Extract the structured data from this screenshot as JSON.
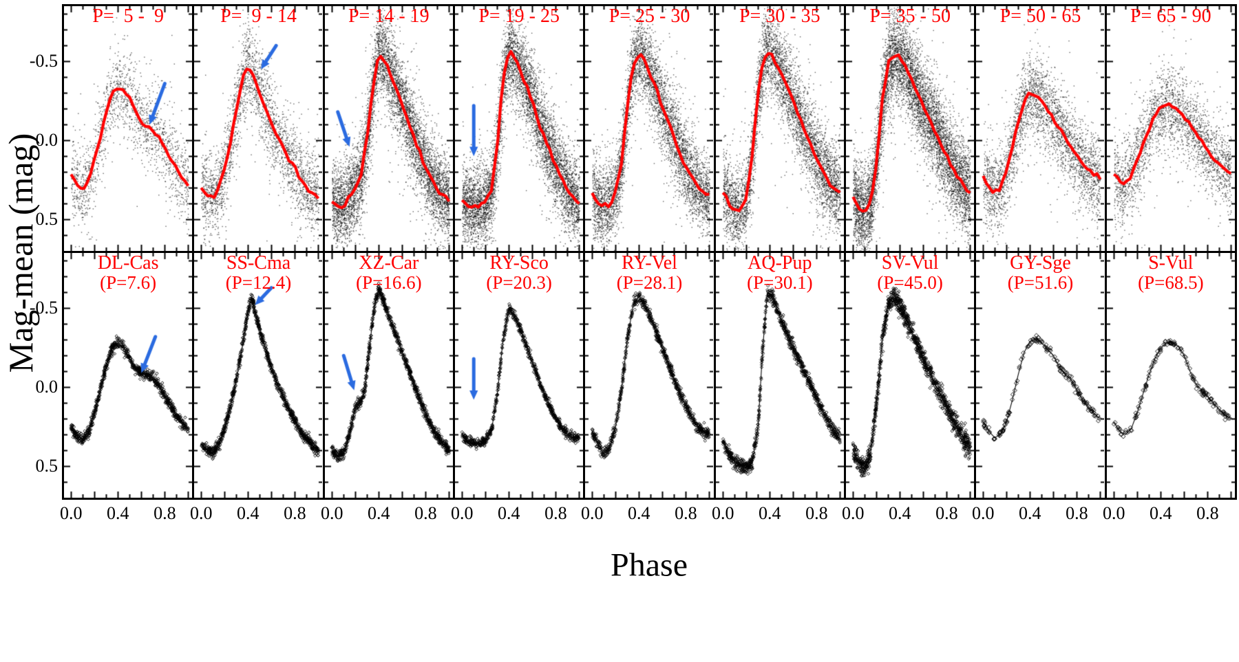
{
  "figure": {
    "ylabel": "Mag-mean (mag)",
    "xlabel": "Phase",
    "colors": {
      "mean_curve": "#ff0000",
      "panel_title": "#ff0000",
      "arrow": "#2b6be0",
      "points": "#000000",
      "axis": "#000000",
      "background": "#ffffff"
    }
  },
  "chart_data": {
    "type": "scatter",
    "x_label": "Phase",
    "y_label": "Mag-mean (mag)",
    "y_axis_inverted": true,
    "x_range": [
      0,
      1
    ],
    "y_plot_range_top_to_bottom": [
      -0.85,
      0.7
    ],
    "x_ticks": [
      0.0,
      0.4,
      0.8
    ],
    "x_tick_labels": [
      "0.0",
      "0.4",
      "0.8"
    ],
    "y_ticks": [
      -0.5,
      0.0,
      0.5
    ],
    "y_tick_labels": [
      "-0.5",
      "0.0",
      "0.5"
    ],
    "top_row_description": "Composite phase-folded light curves of Cepheids binned by period, black scatter points with red mean curve, blue arrows mark bump feature",
    "bottom_row_description": "Template light curves of individual Cepheids, black diamond points, blue arrows mark bump feature",
    "top_row": [
      {
        "label": "P=  5 -  9",
        "period_min": 5,
        "period_max": 9,
        "n_points": 1600,
        "scatter_sigma": 0.12,
        "mean_curve": {
          "mag": [
            0.22,
            0.28,
            0.3,
            0.25,
            0.12,
            -0.02,
            -0.18,
            -0.3,
            -0.34,
            -0.32,
            -0.26,
            -0.18,
            -0.12,
            -0.08,
            -0.06,
            -0.02,
            0.05,
            0.12,
            0.18,
            0.24,
            0.28
          ]
        },
        "arrow": {
          "from": [
            0.8,
            -0.36
          ],
          "to": [
            0.67,
            -0.1
          ]
        }
      },
      {
        "label": "P=  9 - 14",
        "period_min": 9,
        "period_max": 14,
        "n_points": 2600,
        "scatter_sigma": 0.12,
        "mean_curve": {
          "mag": [
            0.3,
            0.35,
            0.37,
            0.3,
            0.18,
            0.02,
            -0.18,
            -0.38,
            -0.46,
            -0.4,
            -0.3,
            -0.2,
            -0.1,
            -0.02,
            0.05,
            0.12,
            0.18,
            0.24,
            0.3,
            0.34,
            0.36
          ]
        },
        "arrow": {
          "from": [
            0.64,
            -0.6
          ],
          "to": [
            0.51,
            -0.45
          ]
        }
      },
      {
        "label": "P= 14 - 19",
        "period_min": 14,
        "period_max": 19,
        "n_points": 6000,
        "scatter_sigma": 0.12,
        "mean_curve": {
          "mag": [
            0.38,
            0.42,
            0.41,
            0.36,
            0.3,
            0.22,
            -0.02,
            -0.35,
            -0.55,
            -0.51,
            -0.42,
            -0.32,
            -0.22,
            -0.12,
            -0.02,
            0.08,
            0.17,
            0.25,
            0.31,
            0.35,
            0.38
          ]
        },
        "arrow": {
          "from": [
            0.05,
            -0.18
          ],
          "to": [
            0.15,
            0.04
          ]
        }
      },
      {
        "label": "P= 19 - 25",
        "period_min": 19,
        "period_max": 25,
        "n_points": 6000,
        "scatter_sigma": 0.12,
        "mean_curve": {
          "mag": [
            0.38,
            0.41,
            0.42,
            0.42,
            0.4,
            0.32,
            0.05,
            -0.4,
            -0.57,
            -0.52,
            -0.44,
            -0.34,
            -0.24,
            -0.13,
            -0.03,
            0.07,
            0.16,
            0.24,
            0.31,
            0.36,
            0.39
          ]
        },
        "arrow": {
          "from": [
            0.1,
            -0.22
          ],
          "to": [
            0.1,
            0.1
          ]
        }
      },
      {
        "label": "P= 25 - 30",
        "period_min": 25,
        "period_max": 30,
        "n_points": 5000,
        "scatter_sigma": 0.12,
        "mean_curve": {
          "mag": [
            0.34,
            0.4,
            0.43,
            0.41,
            0.33,
            0.15,
            -0.2,
            -0.48,
            -0.55,
            -0.5,
            -0.42,
            -0.32,
            -0.22,
            -0.12,
            -0.02,
            0.08,
            0.16,
            0.23,
            0.29,
            0.33,
            0.35
          ]
        }
      },
      {
        "label": "P= 30 - 35",
        "period_min": 30,
        "period_max": 35,
        "n_points": 5000,
        "scatter_sigma": 0.12,
        "mean_curve": {
          "mag": [
            0.32,
            0.4,
            0.44,
            0.44,
            0.36,
            0.1,
            -0.3,
            -0.53,
            -0.56,
            -0.5,
            -0.42,
            -0.33,
            -0.24,
            -0.15,
            -0.06,
            0.03,
            0.11,
            0.19,
            0.25,
            0.3,
            0.33
          ]
        }
      },
      {
        "label": "P= 35 - 50",
        "period_min": 35,
        "period_max": 50,
        "n_points": 7000,
        "scatter_sigma": 0.13,
        "mean_curve": {
          "mag": [
            0.36,
            0.43,
            0.46,
            0.4,
            0.15,
            -0.25,
            -0.48,
            -0.55,
            -0.52,
            -0.46,
            -0.38,
            -0.3,
            -0.22,
            -0.14,
            -0.06,
            0.02,
            0.1,
            0.18,
            0.24,
            0.3,
            0.34
          ]
        }
      },
      {
        "label": "P= 50 - 65",
        "period_min": 50,
        "period_max": 65,
        "n_points": 3000,
        "scatter_sigma": 0.12,
        "mean_curve": {
          "mag": [
            0.24,
            0.3,
            0.33,
            0.3,
            0.2,
            0.05,
            -0.12,
            -0.25,
            -0.3,
            -0.29,
            -0.25,
            -0.2,
            -0.14,
            -0.08,
            -0.02,
            0.04,
            0.1,
            0.15,
            0.19,
            0.22,
            0.24
          ]
        }
      },
      {
        "label": "P= 65 - 90",
        "period_min": 65,
        "period_max": 90,
        "n_points": 2500,
        "scatter_sigma": 0.12,
        "mean_curve": {
          "mag": [
            0.22,
            0.26,
            0.27,
            0.22,
            0.12,
            0.02,
            -0.08,
            -0.16,
            -0.21,
            -0.23,
            -0.22,
            -0.19,
            -0.15,
            -0.1,
            -0.05,
            0.0,
            0.06,
            0.11,
            0.15,
            0.18,
            0.2
          ]
        }
      }
    ],
    "bottom_row": [
      {
        "name": "DL-Cas",
        "period_label": "(P=7.6)",
        "period": 7.6,
        "n_points": 800,
        "jitter": 0.018,
        "marker_size": 2.2,
        "curve": {
          "mag": [
            0.26,
            0.31,
            0.33,
            0.28,
            0.16,
            0.02,
            -0.13,
            -0.25,
            -0.28,
            -0.25,
            -0.18,
            -0.12,
            -0.09,
            -0.08,
            -0.06,
            -0.01,
            0.06,
            0.12,
            0.18,
            0.23,
            0.26
          ]
        },
        "arrow": {
          "from": [
            0.72,
            -0.32
          ],
          "to": [
            0.6,
            -0.09
          ]
        }
      },
      {
        "name": "SS-Cma",
        "period_label": "(P=12.4)",
        "period": 12.4,
        "n_points": 900,
        "jitter": 0.018,
        "marker_size": 2.2,
        "curve": {
          "phase": [
            0,
            0.05,
            0.1,
            0.15,
            0.2,
            0.25,
            0.3,
            0.35,
            0.4,
            0.43,
            0.46,
            0.5,
            0.55,
            0.6,
            0.65,
            0.7,
            0.75,
            0.8,
            0.85,
            0.9,
            0.95,
            1
          ],
          "mag": [
            0.36,
            0.4,
            0.42,
            0.36,
            0.26,
            0.12,
            -0.05,
            -0.25,
            -0.48,
            -0.57,
            -0.48,
            -0.36,
            -0.24,
            -0.12,
            -0.02,
            0.06,
            0.14,
            0.21,
            0.28,
            0.33,
            0.37,
            0.4
          ]
        },
        "arrow": {
          "from": [
            0.6,
            -0.63
          ],
          "to": [
            0.46,
            -0.52
          ]
        }
      },
      {
        "name": "XZ-Car",
        "period_label": "(P=16.6)",
        "period": 16.6,
        "n_points": 900,
        "jitter": 0.018,
        "marker_size": 2.2,
        "curve": {
          "phase": [
            0,
            0.05,
            0.1,
            0.15,
            0.2,
            0.24,
            0.28,
            0.32,
            0.36,
            0.4,
            0.44,
            0.5,
            0.55,
            0.6,
            0.65,
            0.7,
            0.75,
            0.8,
            0.85,
            0.9,
            0.95,
            1
          ],
          "mag": [
            0.4,
            0.44,
            0.42,
            0.3,
            0.12,
            0.1,
            0.02,
            -0.25,
            -0.5,
            -0.62,
            -0.55,
            -0.42,
            -0.32,
            -0.22,
            -0.12,
            -0.02,
            0.08,
            0.17,
            0.25,
            0.31,
            0.36,
            0.4
          ]
        },
        "arrow": {
          "from": [
            0.1,
            -0.2
          ],
          "to": [
            0.19,
            0.02
          ]
        }
      },
      {
        "name": "RY-Sco",
        "period_label": "(P=20.3)",
        "period": 20.3,
        "n_points": 700,
        "jitter": 0.016,
        "marker_size": 2.2,
        "curve": {
          "mag": [
            0.3,
            0.34,
            0.36,
            0.36,
            0.34,
            0.28,
            0.05,
            -0.3,
            -0.5,
            -0.45,
            -0.36,
            -0.26,
            -0.16,
            -0.06,
            0.04,
            0.12,
            0.2,
            0.26,
            0.3,
            0.32,
            0.32
          ]
        },
        "arrow": {
          "from": [
            0.1,
            -0.18
          ],
          "to": [
            0.1,
            0.08
          ]
        }
      },
      {
        "name": "RY-Vel",
        "period_label": "(P=28.1)",
        "period": 28.1,
        "n_points": 750,
        "jitter": 0.018,
        "marker_size": 2.2,
        "curve": {
          "mag": [
            0.28,
            0.36,
            0.42,
            0.38,
            0.25,
            0.02,
            -0.3,
            -0.52,
            -0.58,
            -0.52,
            -0.44,
            -0.34,
            -0.25,
            -0.15,
            -0.05,
            0.04,
            0.12,
            0.19,
            0.25,
            0.28,
            0.3
          ]
        }
      },
      {
        "name": "AQ-Pup",
        "period_label": "(P=30.1)",
        "period": 30.1,
        "n_points": 850,
        "jitter": 0.022,
        "marker_size": 2.2,
        "curve": {
          "phase": [
            0,
            0.05,
            0.1,
            0.15,
            0.2,
            0.25,
            0.3,
            0.34,
            0.38,
            0.42,
            0.46,
            0.5,
            0.55,
            0.6,
            0.65,
            0.7,
            0.75,
            0.8,
            0.85,
            0.9,
            0.95,
            1
          ],
          "mag": [
            0.34,
            0.42,
            0.47,
            0.5,
            0.51,
            0.48,
            0.25,
            -0.25,
            -0.6,
            -0.58,
            -0.5,
            -0.42,
            -0.33,
            -0.25,
            -0.17,
            -0.09,
            -0.01,
            0.07,
            0.15,
            0.22,
            0.28,
            0.33
          ]
        }
      },
      {
        "name": "SV-Vul",
        "period_label": "(P=45.0)",
        "period": 45.0,
        "n_points": 1100,
        "jitter": 0.032,
        "marker_size": 2.2,
        "curve": {
          "mag": [
            0.4,
            0.48,
            0.52,
            0.42,
            0.1,
            -0.3,
            -0.52,
            -0.58,
            -0.52,
            -0.44,
            -0.35,
            -0.26,
            -0.18,
            -0.1,
            -0.02,
            0.05,
            0.12,
            0.2,
            0.27,
            0.33,
            0.38
          ]
        }
      },
      {
        "name": "GY-Sge",
        "period_label": "(P=51.6)",
        "period": 51.6,
        "n_points": 160,
        "jitter": 0.012,
        "marker_size": 3.1,
        "curve": {
          "mag": [
            0.22,
            0.28,
            0.32,
            0.3,
            0.22,
            0.08,
            -0.08,
            -0.22,
            -0.29,
            -0.31,
            -0.28,
            -0.24,
            -0.2,
            -0.13,
            -0.08,
            -0.05,
            0.02,
            0.08,
            0.13,
            0.17,
            0.2
          ]
        }
      },
      {
        "name": "S-Vul",
        "period_label": "(P=68.5)",
        "period": 68.5,
        "n_points": 140,
        "jitter": 0.012,
        "marker_size": 3.1,
        "curve": {
          "mag": [
            0.22,
            0.28,
            0.3,
            0.26,
            0.16,
            0.04,
            -0.08,
            -0.18,
            -0.25,
            -0.28,
            -0.28,
            -0.26,
            -0.2,
            -0.1,
            -0.02,
            0.02,
            0.06,
            0.1,
            0.14,
            0.18,
            0.2
          ]
        }
      }
    ]
  }
}
